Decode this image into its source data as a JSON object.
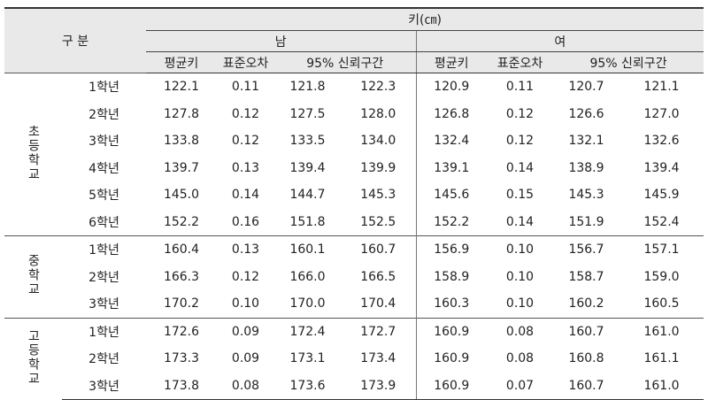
{
  "header": {
    "group": "구 분",
    "measure": "키(㎝)",
    "male": "남",
    "female": "여",
    "columns": [
      "평균키",
      "표준오차",
      "95% 신뢰구간",
      "평균키",
      "표준오차",
      "95% 신뢰구간"
    ]
  },
  "groups": [
    {
      "name": "초등학교",
      "rows": [
        {
          "grade": "1학년",
          "cells": [
            "122.1",
            "0.11",
            "121.8",
            "122.3",
            "120.9",
            "0.11",
            "120.7",
            "121.1"
          ]
        },
        {
          "grade": "2학년",
          "cells": [
            "127.8",
            "0.12",
            "127.5",
            "128.0",
            "126.8",
            "0.12",
            "126.6",
            "127.0"
          ]
        },
        {
          "grade": "3학년",
          "cells": [
            "133.8",
            "0.12",
            "133.5",
            "134.0",
            "132.4",
            "0.12",
            "132.1",
            "132.6"
          ]
        },
        {
          "grade": "4학년",
          "cells": [
            "139.7",
            "0.13",
            "139.4",
            "139.9",
            "139.1",
            "0.14",
            "138.9",
            "139.4"
          ]
        },
        {
          "grade": "5학년",
          "cells": [
            "145.0",
            "0.14",
            "144.7",
            "145.3",
            "145.6",
            "0.15",
            "145.3",
            "145.9"
          ]
        },
        {
          "grade": "6학년",
          "cells": [
            "152.2",
            "0.16",
            "151.8",
            "152.5",
            "152.2",
            "0.14",
            "151.9",
            "152.4"
          ]
        }
      ]
    },
    {
      "name": "중학교",
      "rows": [
        {
          "grade": "1학년",
          "cells": [
            "160.4",
            "0.13",
            "160.1",
            "160.7",
            "156.9",
            "0.10",
            "156.7",
            "157.1"
          ]
        },
        {
          "grade": "2학년",
          "cells": [
            "166.3",
            "0.12",
            "166.0",
            "166.5",
            "158.9",
            "0.10",
            "158.7",
            "159.0"
          ]
        },
        {
          "grade": "3학년",
          "cells": [
            "170.2",
            "0.10",
            "170.0",
            "170.4",
            "160.3",
            "0.10",
            "160.2",
            "160.5"
          ]
        }
      ]
    },
    {
      "name": "고등학교",
      "rows": [
        {
          "grade": "1학년",
          "cells": [
            "172.6",
            "0.09",
            "172.4",
            "172.7",
            "160.9",
            "0.08",
            "160.7",
            "161.0"
          ]
        },
        {
          "grade": "2학년",
          "cells": [
            "173.3",
            "0.09",
            "173.1",
            "173.4",
            "160.9",
            "0.08",
            "160.8",
            "161.1"
          ]
        },
        {
          "grade": "3학년",
          "cells": [
            "173.8",
            "0.08",
            "173.6",
            "173.9",
            "160.9",
            "0.07",
            "160.7",
            "161.0"
          ]
        }
      ]
    }
  ]
}
